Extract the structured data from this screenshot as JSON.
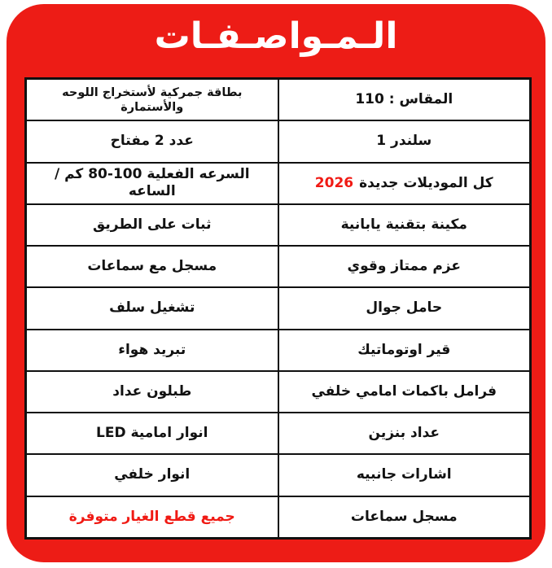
{
  "title": "الـمـواصـفـات",
  "colors": {
    "frame": "#ED1C16",
    "accent": "#F01A14",
    "border": "#101010",
    "text": "#121212",
    "title_text": "#FFFFFF"
  },
  "specs": {
    "rows": [
      {
        "right": "المقاس : 110",
        "left": "بطاقة جمركية لأستخراج اللوحه والأستمارة"
      },
      {
        "right": "سلندر 1",
        "left": "عدد 2 مفتاح"
      },
      {
        "right": "كل الموديلات جديدة",
        "right_year": "2026",
        "left": "السرعه الفعلية 100-80 كم / الساعه"
      },
      {
        "right": "مكينة بتقنية يابانية",
        "left": "ثبات على الطريق"
      },
      {
        "right": "عزم ممتاز وقوي",
        "left": "مسجل مع سماعات"
      },
      {
        "right": "حامل جوال",
        "left": "تشغيل سلف"
      },
      {
        "right": "قير اوتوماتيك",
        "left": "تبريد هواء"
      },
      {
        "right": "فرامل باكمات امامي خلفي",
        "left": "طبلون عداد"
      },
      {
        "right": "عداد بنزين",
        "left": "انوار امامية LED"
      },
      {
        "right": "اشارات جانبيه",
        "left": "انوار خلفي"
      },
      {
        "right": "مسجل سماعات",
        "left": "جميع قطع الغيار متوفرة"
      }
    ]
  }
}
